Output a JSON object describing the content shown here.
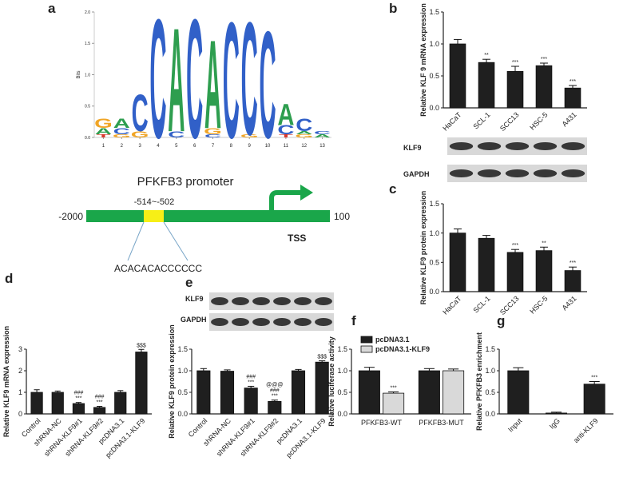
{
  "chart_data": [
    {
      "type": "logo",
      "panel": "a",
      "ylabel": "Bits",
      "ylim": [
        0,
        2
      ],
      "yticks": [
        {
          "value": 0,
          "label": "0.0"
        },
        0.5,
        {
          "value": 1,
          "label": "1.0"
        },
        1.5,
        {
          "value": 2,
          "label": "2.0"
        }
      ],
      "xlim": [
        0.5,
        13.5
      ],
      "xticks": [
        1,
        2,
        3,
        4,
        5,
        6,
        7,
        8,
        9,
        10,
        11,
        12,
        13
      ],
      "letter_colors": {
        "A": "#2e9e4f",
        "C": "#3160c8",
        "G": "#f0a526",
        "T": "#d83a2e"
      },
      "stacks": [
        [
          {
            "letter": "T",
            "bits": 0.05
          },
          {
            "letter": "A",
            "bits": 0.1
          },
          {
            "letter": "G",
            "bits": 0.15
          }
        ],
        [
          {
            "letter": "G",
            "bits": 0.05
          },
          {
            "letter": "C",
            "bits": 0.1
          },
          {
            "letter": "A",
            "bits": 0.15
          }
        ],
        [
          {
            "letter": "G",
            "bits": 0.1
          },
          {
            "letter": "C",
            "bits": 0.6
          }
        ],
        [
          {
            "letter": "C",
            "bits": 1.95
          }
        ],
        [
          {
            "letter": "C",
            "bits": 0.1
          },
          {
            "letter": "A",
            "bits": 1.7
          }
        ],
        [
          {
            "letter": "C",
            "bits": 1.95
          }
        ],
        [
          {
            "letter": "C",
            "bits": 0.05
          },
          {
            "letter": "G",
            "bits": 0.1
          },
          {
            "letter": "A",
            "bits": 1.45
          }
        ],
        [
          {
            "letter": "C",
            "bits": 1.9
          }
        ],
        [
          {
            "letter": "G",
            "bits": 0.05
          },
          {
            "letter": "C",
            "bits": 1.85
          }
        ],
        [
          {
            "letter": "C",
            "bits": 1.75
          }
        ],
        [
          {
            "letter": "T",
            "bits": 0.05
          },
          {
            "letter": "C",
            "bits": 0.15
          },
          {
            "letter": "A",
            "bits": 0.35
          }
        ],
        [
          {
            "letter": "G",
            "bits": 0.05
          },
          {
            "letter": "A",
            "bits": 0.05
          },
          {
            "letter": "C",
            "bits": 0.2
          }
        ],
        [
          {
            "letter": "A",
            "bits": 0.05
          },
          {
            "letter": "C",
            "bits": 0.05
          }
        ]
      ]
    },
    {
      "type": "bar",
      "panel": "b",
      "ylabel": "Relative KLF 9 mRNA expression",
      "categories": [
        "HaCaT",
        "SCL-1",
        "SCC13",
        "HSC-5",
        "A431"
      ],
      "values": [
        1.0,
        0.71,
        0.57,
        0.66,
        0.31
      ],
      "errors": [
        0.07,
        0.05,
        0.08,
        0.04,
        0.04
      ],
      "annotations": [
        null,
        "**",
        "***",
        "***",
        "***"
      ],
      "color": "#1f1f1f",
      "xlabel_rotation": -45,
      "ylim": [
        0,
        1.5
      ],
      "yticks": [
        {
          "value": 0,
          "label": "0.0"
        },
        0.5,
        {
          "value": 1,
          "label": "1.0"
        },
        1.5
      ]
    },
    {
      "type": "bar",
      "panel": "c",
      "ylabel": "Relative KLF9 protein expression",
      "categories": [
        "HaCaT",
        "SCL-1",
        "SCC13",
        "HSC-5",
        "A431"
      ],
      "values": [
        1.0,
        0.91,
        0.67,
        0.7,
        0.36
      ],
      "errors": [
        0.07,
        0.05,
        0.05,
        0.06,
        0.06
      ],
      "annotations": [
        null,
        null,
        "***",
        "**",
        "***"
      ],
      "color": "#1f1f1f",
      "xlabel_rotation": -45,
      "ylim": [
        0,
        1.5
      ],
      "yticks": [
        {
          "value": 0,
          "label": "0.0"
        },
        0.5,
        {
          "value": 1,
          "label": "1.0"
        },
        1.5
      ]
    },
    {
      "type": "bar",
      "panel": "d",
      "ylabel": "Relative KLF9 mRNA expression",
      "categories": [
        "Control",
        "shRNA-NC",
        "shRNA-KLF9#1",
        "shRNA-KLF9#2",
        "pcDNA3.1",
        "pcDNA3.1-KLF9"
      ],
      "values": [
        1.0,
        1.0,
        0.48,
        0.3,
        1.0,
        2.87
      ],
      "errors": [
        0.12,
        0.06,
        0.05,
        0.05,
        0.08,
        0.12
      ],
      "annotations": [
        null,
        null,
        [
          "###",
          "***"
        ],
        [
          "###",
          "***"
        ],
        null,
        "$$$"
      ],
      "color": "#1f1f1f",
      "xlabel_rotation": -45,
      "ylim": [
        0,
        3
      ],
      "yticks": [
        0,
        1,
        2,
        3
      ]
    },
    {
      "type": "bar",
      "panel": "e",
      "ylabel": "Relative KLF9 protein expression",
      "categories": [
        "Control",
        "shRNA-NC",
        "shRNA-KLF9#1",
        "shRNA-KLF9#2",
        "pcDNA3.1",
        "pcDNA3.1-KLF9"
      ],
      "values": [
        1.0,
        0.99,
        0.6,
        0.29,
        1.0,
        1.2
      ],
      "errors": [
        0.05,
        0.03,
        0.04,
        0.03,
        0.03,
        0.03
      ],
      "annotations": [
        null,
        null,
        [
          "###",
          "***"
        ],
        [
          "@@@",
          "###",
          "***"
        ],
        null,
        "$$$"
      ],
      "color": "#1f1f1f",
      "xlabel_rotation": -45,
      "ylim": [
        0,
        1.5
      ],
      "yticks": [
        {
          "value": 0,
          "label": "0.0"
        },
        0.5,
        {
          "value": 1,
          "label": "1.0"
        },
        1.5
      ]
    },
    {
      "type": "grouped_bar",
      "panel": "f",
      "ylabel": "Relative luciferase activity",
      "categories": [
        "PFKFB3-WT",
        "PFKFB3-MUT"
      ],
      "xlabel_rotation": 0,
      "series": [
        {
          "name": "pcDNA3.1",
          "color": "#1f1f1f",
          "values": [
            1.0,
            1.0
          ],
          "errors": [
            0.08,
            0.05
          ],
          "annotations": [
            null,
            null
          ]
        },
        {
          "name": "pcDNA3.1-KLF9",
          "color": "#d9d9d9",
          "values": [
            0.48,
            1.0
          ],
          "errors": [
            0.03,
            0.04
          ],
          "annotations": [
            "***",
            null
          ]
        }
      ],
      "ylim": [
        0,
        1.5
      ],
      "yticks": [
        {
          "value": 0,
          "label": "0.0"
        },
        0.5,
        {
          "value": 1,
          "label": "1.0"
        },
        1.5
      ]
    },
    {
      "type": "bar",
      "panel": "g",
      "ylabel": "Relative PFKFB3 enrichment",
      "categories": [
        "Input",
        "IgG",
        "anti-KLF9"
      ],
      "values": [
        1.0,
        0.02,
        0.69
      ],
      "errors": [
        0.07,
        0.02,
        0.06
      ],
      "annotations": [
        null,
        null,
        "***"
      ],
      "color": "#1f1f1f",
      "xlabel_rotation": -45,
      "ylim": [
        0,
        1.5
      ],
      "yticks": [
        {
          "value": 0,
          "label": "0.0"
        },
        0.5,
        {
          "value": 1,
          "label": "1.0"
        },
        1.5
      ]
    }
  ],
  "diagram": {
    "title": "PFKFB3 promoter",
    "site": "-514~-502",
    "start": "-2000",
    "end": "100",
    "tss": "TSS",
    "sequence": "ACACACACCCCCC"
  },
  "blots": [
    {
      "labels": [
        "KLF9",
        "GAPDH"
      ]
    },
    {
      "labels": [
        "KLF9",
        "GAPDH"
      ]
    }
  ]
}
